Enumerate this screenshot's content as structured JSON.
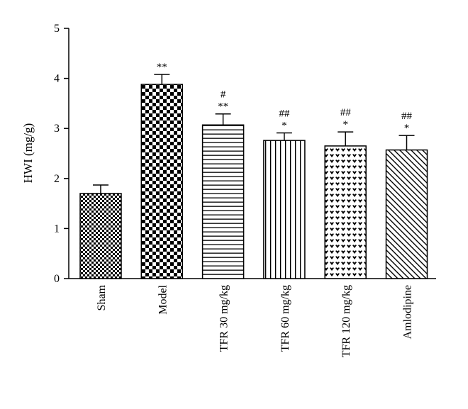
{
  "chart_data": {
    "type": "bar",
    "title": "",
    "xlabel": "",
    "ylabel": "HWI (mg/g)",
    "ylim": [
      0,
      5
    ],
    "yticks": [
      "0",
      "1",
      "2",
      "3",
      "4",
      "5"
    ],
    "categories": [
      "Sham",
      "Model",
      "TFR 30 mg/kg",
      "TFR 60 mg/kg",
      "TFR 120 mg/kg",
      "Amlodipine"
    ],
    "values": [
      1.7,
      3.88,
      3.07,
      2.76,
      2.65,
      2.57
    ],
    "errors": [
      0.17,
      0.2,
      0.22,
      0.15,
      0.28,
      0.29
    ],
    "annotations": [
      [],
      [
        "**"
      ],
      [
        "#",
        "**"
      ],
      [
        "##",
        "*"
      ],
      [
        "##",
        "*"
      ],
      [
        "##",
        "*"
      ]
    ],
    "patterns": [
      "small-checker",
      "large-checker",
      "horizontal-lines",
      "vertical-lines",
      "hearts",
      "diagonal-lines"
    ],
    "grid": false,
    "legend": "none"
  }
}
